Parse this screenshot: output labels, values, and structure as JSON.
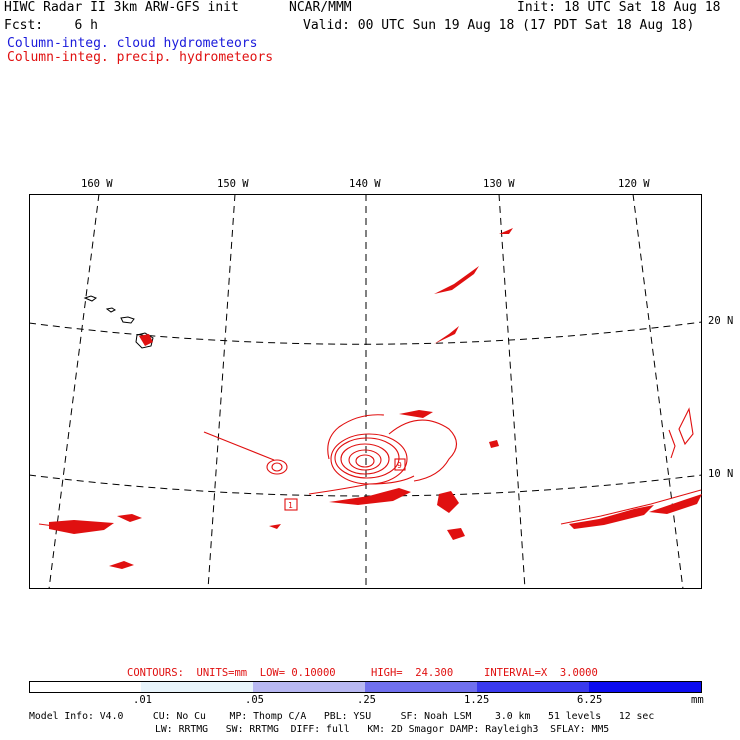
{
  "header": {
    "model": "HIWC Radar II 3km ARW-GFS init",
    "org": "NCAR/MMM",
    "init": "Init: 18 UTC Sat 18 Aug 18",
    "fcst": "Fcst:    6 h",
    "valid": "Valid: 00 UTC Sun 19 Aug 18 (17 PDT Sat 18 Aug 18)",
    "legend_cloud": "Column-integ. cloud hydrometeors",
    "legend_precip": "Column-integ. precip. hydrometeors"
  },
  "colors": {
    "cloud": "#1a1adb",
    "precip": "#e01010",
    "frame": "#000000"
  },
  "map": {
    "lon_labels": [
      "160 W",
      "150 W",
      "140 W",
      "130 W",
      "120 W"
    ],
    "lat_labels": [
      "20 N",
      "10 N"
    ],
    "contour_marks": [
      "9",
      "1"
    ]
  },
  "contours_line": {
    "label": "CONTOURS:  UNITS=mm  LOW= 0.10000",
    "high": "HIGH=  24.300",
    "interval": "INTERVAL=X  3.0000"
  },
  "colorbar": {
    "ticks": [
      ".01",
      ".05",
      ".25",
      "1.25",
      "6.25"
    ],
    "units": "mm"
  },
  "footer": {
    "line1": "Model Info: V4.0     CU: No Cu    MP: Thomp C/A   PBL: YSU     SF: Noah LSM    3.0 km   51 levels   12 sec",
    "line2": "LW: RRTMG   SW: RRTMG  DIFF: full   KM: 2D Smagor DAMP: Rayleigh3  SFLAY: MM5"
  }
}
